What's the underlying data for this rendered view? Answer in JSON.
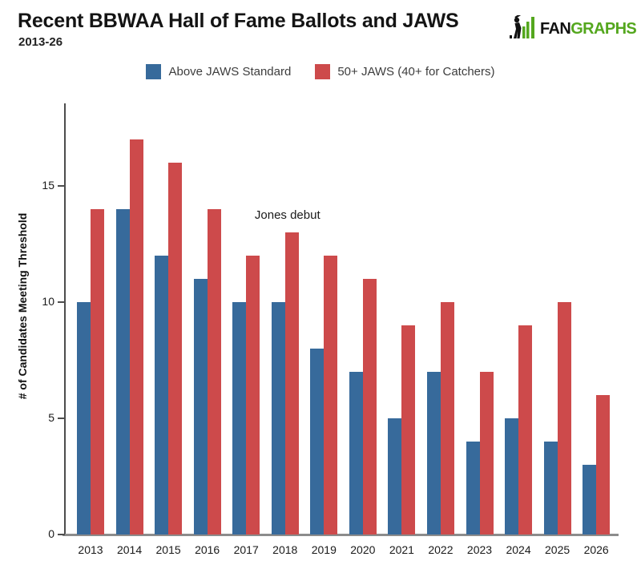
{
  "header": {
    "title": "Recent BBWAA Hall of Fame Ballots and JAWS",
    "subtitle": "2013-26",
    "logo": {
      "fan": "FAN",
      "graphs": "GRAPHS",
      "green": "#54a71e",
      "black": "#111111"
    }
  },
  "legend": [
    {
      "label": "Above JAWS Standard",
      "color": "#376a9b"
    },
    {
      "label": "50+ JAWS (40+ for Catchers)",
      "color": "#cd4a4b"
    }
  ],
  "chart_data": {
    "type": "bar",
    "title": "Recent BBWAA Hall of Fame Ballots and JAWS",
    "subtitle": "2013-26",
    "xlabel": "",
    "ylabel": "# of Candidates Meeting Threshold",
    "categories": [
      "2013",
      "2014",
      "2015",
      "2016",
      "2017",
      "2018",
      "2019",
      "2020",
      "2021",
      "2022",
      "2023",
      "2024",
      "2025",
      "2026"
    ],
    "series": [
      {
        "name": "Above JAWS Standard",
        "color": "#376a9b",
        "values": [
          10,
          14,
          12,
          11,
          10,
          10,
          8,
          7,
          5,
          7,
          4,
          5,
          4,
          3
        ]
      },
      {
        "name": "50+ JAWS (40+ for Catchers)",
        "color": "#cd4a4b",
        "values": [
          14,
          17,
          16,
          14,
          12,
          13,
          12,
          11,
          9,
          10,
          7,
          9,
          10,
          6
        ]
      }
    ],
    "yticks": [
      0,
      5,
      10,
      15
    ],
    "ylim": [
      0,
      18.5
    ],
    "grid": false,
    "legend_position": "top",
    "annotation": {
      "text": "Jones debut",
      "category": "2018"
    }
  },
  "colors": {
    "axis_y": "#4d4d4d",
    "axis_x": "#8c8c8c",
    "background": "#ffffff"
  }
}
